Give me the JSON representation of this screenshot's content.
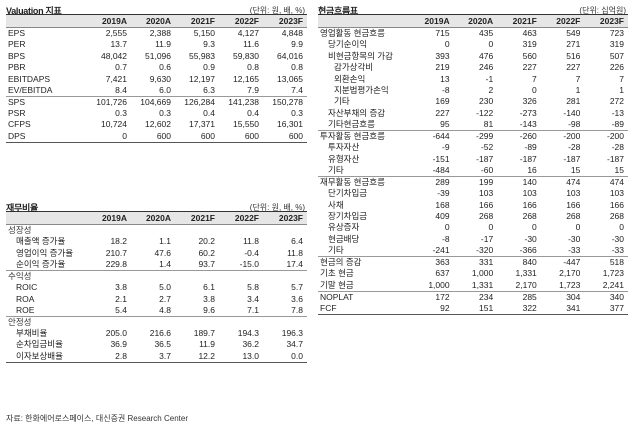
{
  "years": [
    "2019A",
    "2020A",
    "2021F",
    "2022F",
    "2023F"
  ],
  "valuation": {
    "title": "Valuation 지표",
    "unit": "(단위: 원, 배, %)",
    "groups": [
      [
        {
          "label": "EPS",
          "values": [
            "2,555",
            "2,388",
            "5,150",
            "4,127",
            "4,848"
          ]
        },
        {
          "label": "PER",
          "values": [
            "13.7",
            "11.9",
            "9.3",
            "11.6",
            "9.9"
          ]
        },
        {
          "label": "BPS",
          "values": [
            "48,042",
            "51,096",
            "55,983",
            "59,830",
            "64,016"
          ]
        },
        {
          "label": "PBR",
          "values": [
            "0.7",
            "0.6",
            "0.9",
            "0.8",
            "0.8"
          ]
        },
        {
          "label": "EBITDAPS",
          "values": [
            "7,421",
            "9,630",
            "12,197",
            "12,165",
            "13,065"
          ]
        },
        {
          "label": "EV/EBITDA",
          "values": [
            "8.4",
            "6.0",
            "6.3",
            "7.9",
            "7.4"
          ]
        }
      ],
      [
        {
          "label": "SPS",
          "values": [
            "101,726",
            "104,669",
            "126,284",
            "141,238",
            "150,278"
          ]
        },
        {
          "label": "PSR",
          "values": [
            "0.3",
            "0.3",
            "0.4",
            "0.4",
            "0.3"
          ]
        },
        {
          "label": "CFPS",
          "values": [
            "10,724",
            "12,602",
            "17,371",
            "15,550",
            "16,301"
          ]
        },
        {
          "label": "DPS",
          "values": [
            "0",
            "600",
            "600",
            "600",
            "600"
          ]
        }
      ]
    ]
  },
  "ratios": {
    "title": "재무비율",
    "unit": "(단위: 원, 배, %)",
    "groups": [
      [
        {
          "label": "성장성",
          "cat": true,
          "values": [
            "",
            "",
            "",
            "",
            ""
          ]
        },
        {
          "label": "매출액 증가율",
          "indent": 1,
          "values": [
            "18.2",
            "1.1",
            "20.2",
            "11.8",
            "6.4"
          ]
        },
        {
          "label": "영업이익 증가율",
          "indent": 1,
          "values": [
            "210.7",
            "47.6",
            "60.2",
            "-0.4",
            "11.8"
          ]
        },
        {
          "label": "순이익 증가율",
          "indent": 1,
          "values": [
            "229.8",
            "1.4",
            "93.7",
            "-15.0",
            "17.4"
          ]
        }
      ],
      [
        {
          "label": "수익성",
          "cat": true,
          "values": [
            "",
            "",
            "",
            "",
            ""
          ]
        },
        {
          "label": "ROIC",
          "indent": 1,
          "values": [
            "3.8",
            "5.0",
            "6.1",
            "5.8",
            "5.7"
          ]
        },
        {
          "label": "ROA",
          "indent": 1,
          "values": [
            "2.1",
            "2.7",
            "3.8",
            "3.4",
            "3.6"
          ]
        },
        {
          "label": "ROE",
          "indent": 1,
          "values": [
            "5.4",
            "4.8",
            "9.6",
            "7.1",
            "7.8"
          ]
        }
      ],
      [
        {
          "label": "안정성",
          "cat": true,
          "values": [
            "",
            "",
            "",
            "",
            ""
          ]
        },
        {
          "label": "부채비율",
          "indent": 1,
          "values": [
            "205.0",
            "216.6",
            "189.7",
            "194.3",
            "196.3"
          ]
        },
        {
          "label": "순차입금비율",
          "indent": 1,
          "values": [
            "36.9",
            "36.5",
            "11.9",
            "36.2",
            "34.7"
          ]
        },
        {
          "label": "이자보상배율",
          "indent": 1,
          "values": [
            "2.8",
            "3.7",
            "12.2",
            "13.0",
            "0.0"
          ]
        }
      ]
    ]
  },
  "cashflow": {
    "title": "현금흐름표",
    "unit": "(단위: 십억원)",
    "groups": [
      [
        {
          "label": "영업활동 현금흐름",
          "values": [
            "715",
            "435",
            "463",
            "549",
            "723"
          ]
        },
        {
          "label": "당기순이익",
          "indent": 1,
          "values": [
            "0",
            "0",
            "319",
            "271",
            "319"
          ]
        },
        {
          "label": "비현금항목의 가감",
          "indent": 1,
          "values": [
            "393",
            "476",
            "560",
            "516",
            "507"
          ]
        },
        {
          "label": "감가상각비",
          "indent": 2,
          "values": [
            "219",
            "246",
            "227",
            "227",
            "226"
          ]
        },
        {
          "label": "외환손익",
          "indent": 2,
          "values": [
            "13",
            "-1",
            "7",
            "7",
            "7"
          ]
        },
        {
          "label": "지분법평가손익",
          "indent": 2,
          "values": [
            "-8",
            "2",
            "0",
            "1",
            "1"
          ]
        },
        {
          "label": "기타",
          "indent": 2,
          "values": [
            "169",
            "230",
            "326",
            "281",
            "272"
          ]
        },
        {
          "label": "자산부채의 증감",
          "indent": 1,
          "values": [
            "227",
            "-122",
            "-273",
            "-140",
            "-13"
          ]
        },
        {
          "label": "기타현금흐름",
          "indent": 1,
          "values": [
            "95",
            "81",
            "-143",
            "-98",
            "-89"
          ]
        }
      ],
      [
        {
          "label": "투자활동 현금흐름",
          "values": [
            "-644",
            "-299",
            "-260",
            "-200",
            "-200"
          ]
        },
        {
          "label": "투자자산",
          "indent": 1,
          "values": [
            "-9",
            "-52",
            "-89",
            "-28",
            "-28"
          ]
        },
        {
          "label": "유형자산",
          "indent": 1,
          "values": [
            "-151",
            "-187",
            "-187",
            "-187",
            "-187"
          ]
        },
        {
          "label": "기타",
          "indent": 1,
          "values": [
            "-484",
            "-60",
            "16",
            "15",
            "15"
          ]
        }
      ],
      [
        {
          "label": "재무활동 현금흐름",
          "values": [
            "289",
            "199",
            "140",
            "474",
            "474"
          ]
        },
        {
          "label": "단기차입금",
          "indent": 1,
          "values": [
            "-39",
            "103",
            "103",
            "103",
            "103"
          ]
        },
        {
          "label": "사채",
          "indent": 1,
          "values": [
            "168",
            "166",
            "166",
            "166",
            "166"
          ]
        },
        {
          "label": "장기차입금",
          "indent": 1,
          "values": [
            "409",
            "268",
            "268",
            "268",
            "268"
          ]
        },
        {
          "label": "유상증자",
          "indent": 1,
          "values": [
            "0",
            "0",
            "0",
            "0",
            "0"
          ]
        },
        {
          "label": "현금배당",
          "indent": 1,
          "values": [
            "-8",
            "-17",
            "-30",
            "-30",
            "-30"
          ]
        },
        {
          "label": "기타",
          "indent": 1,
          "values": [
            "-241",
            "-320",
            "-366",
            "-33",
            "-33"
          ]
        }
      ],
      [
        {
          "label": "현금의 증감",
          "values": [
            "363",
            "331",
            "840",
            "-447",
            "518"
          ]
        },
        {
          "label": "기초 현금",
          "values": [
            "637",
            "1,000",
            "1,331",
            "2,170",
            "1,723"
          ]
        },
        {
          "label": "기말 현금",
          "values": [
            "1,000",
            "1,331",
            "2,170",
            "1,723",
            "2,241"
          ]
        }
      ],
      [
        {
          "label": "NOPLAT",
          "values": [
            "172",
            "234",
            "285",
            "304",
            "340"
          ]
        },
        {
          "label": "FCF",
          "values": [
            "92",
            "151",
            "322",
            "341",
            "377"
          ]
        }
      ]
    ]
  },
  "source": "자료: 한화에어로스페이스, 대신증권 Research Center"
}
